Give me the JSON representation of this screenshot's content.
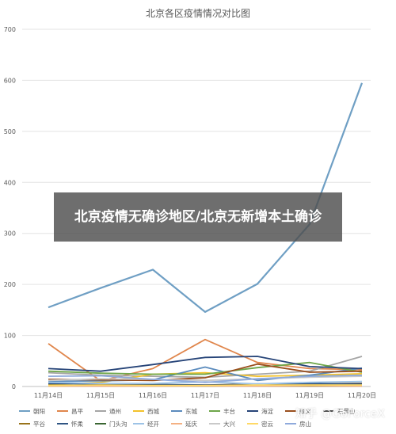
{
  "banner": {
    "text": "北京疫情无确诊地区/北京无新增本土确诊"
  },
  "watermark": {
    "text": "知乎 @GoForceX"
  },
  "chart_data": {
    "type": "line",
    "title": "北京各区疫情情况对比图",
    "xlabel": "",
    "ylabel": "",
    "ylim": [
      0,
      700
    ],
    "yticks": [
      0,
      100,
      200,
      300,
      400,
      500,
      600,
      700
    ],
    "grid": true,
    "legend_position": "bottom",
    "categories": [
      "11月14日",
      "11月15日",
      "11月16日",
      "11月17日",
      "11月18日",
      "11月19日",
      "11月20日"
    ],
    "series": [
      {
        "name": "朝阳",
        "color": "#6f9fc4",
        "values": [
          155,
          193,
          229,
          146,
          201,
          318,
          595
        ]
      },
      {
        "name": "昌平",
        "color": "#e0864c",
        "values": [
          84,
          11,
          35,
          92,
          47,
          35,
          33
        ]
      },
      {
        "name": "通州",
        "color": "#a5a5a5",
        "values": [
          27,
          22,
          20,
          18,
          24,
          30,
          59
        ]
      },
      {
        "name": "西城",
        "color": "#f3c22c",
        "values": [
          4,
          8,
          24,
          27,
          20,
          22,
          25
        ]
      },
      {
        "name": "东城",
        "color": "#5b8bbd",
        "values": [
          10,
          11,
          13,
          38,
          12,
          22,
          36
        ]
      },
      {
        "name": "丰台",
        "color": "#6ea64a",
        "values": [
          30,
          26,
          24,
          24,
          37,
          47,
          28
        ]
      },
      {
        "name": "海淀",
        "color": "#264478",
        "values": [
          35,
          30,
          43,
          57,
          59,
          39,
          35
        ]
      },
      {
        "name": "顺义",
        "color": "#9a4f1e",
        "values": [
          14,
          13,
          12,
          17,
          44,
          28,
          30
        ]
      },
      {
        "name": "石景山",
        "color": "#4d4d4d",
        "values": [
          3,
          2,
          2,
          3,
          5,
          5,
          6
        ]
      },
      {
        "name": "平谷",
        "color": "#99731a",
        "values": [
          1,
          1,
          1,
          1,
          1,
          1,
          1
        ]
      },
      {
        "name": "怀柔",
        "color": "#2f5583",
        "values": [
          6,
          5,
          4,
          3,
          3,
          6,
          4
        ]
      },
      {
        "name": "门头沟",
        "color": "#3a6632",
        "values": [
          2,
          2,
          2,
          1,
          2,
          2,
          2
        ]
      },
      {
        "name": "经开",
        "color": "#9dc3e6",
        "values": [
          8,
          6,
          6,
          9,
          5,
          8,
          10
        ]
      },
      {
        "name": "延庆",
        "color": "#f4b183",
        "values": [
          1,
          1,
          1,
          1,
          1,
          2,
          1
        ]
      },
      {
        "name": "大兴",
        "color": "#c9c9c9",
        "values": [
          12,
          15,
          14,
          12,
          15,
          18,
          20
        ]
      },
      {
        "name": "密云",
        "color": "#ffd966",
        "values": [
          2,
          3,
          2,
          2,
          3,
          3,
          3
        ]
      },
      {
        "name": "房山",
        "color": "#8faadc",
        "values": [
          20,
          21,
          14,
          8,
          15,
          20,
          22
        ]
      }
    ]
  }
}
